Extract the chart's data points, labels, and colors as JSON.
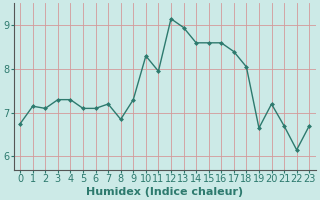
{
  "x": [
    0,
    1,
    2,
    3,
    4,
    5,
    6,
    7,
    8,
    9,
    10,
    11,
    12,
    13,
    14,
    15,
    16,
    17,
    18,
    19,
    20,
    21,
    22,
    23
  ],
  "y": [
    6.75,
    7.15,
    7.1,
    7.3,
    7.3,
    7.1,
    7.1,
    7.2,
    6.85,
    7.3,
    8.3,
    7.95,
    9.15,
    8.95,
    8.6,
    8.6,
    8.6,
    8.4,
    8.05,
    6.65,
    7.2,
    6.7,
    6.15,
    6.7
  ],
  "line_color": "#2d7a6e",
  "marker": "D",
  "markersize": 2.5,
  "linewidth": 1.0,
  "bg_color": "#cceae7",
  "grid_color": "#d4999a",
  "xlabel": "Humidex (Indice chaleur)",
  "xlabel_fontsize": 8,
  "tick_fontsize": 7,
  "xlim": [
    -0.5,
    23.5
  ],
  "ylim": [
    5.7,
    9.5
  ],
  "yticks": [
    6,
    7,
    8,
    9
  ],
  "xticks": [
    0,
    1,
    2,
    3,
    4,
    5,
    6,
    7,
    8,
    9,
    10,
    11,
    12,
    13,
    14,
    15,
    16,
    17,
    18,
    19,
    20,
    21,
    22,
    23
  ],
  "spine_color": "#555555"
}
